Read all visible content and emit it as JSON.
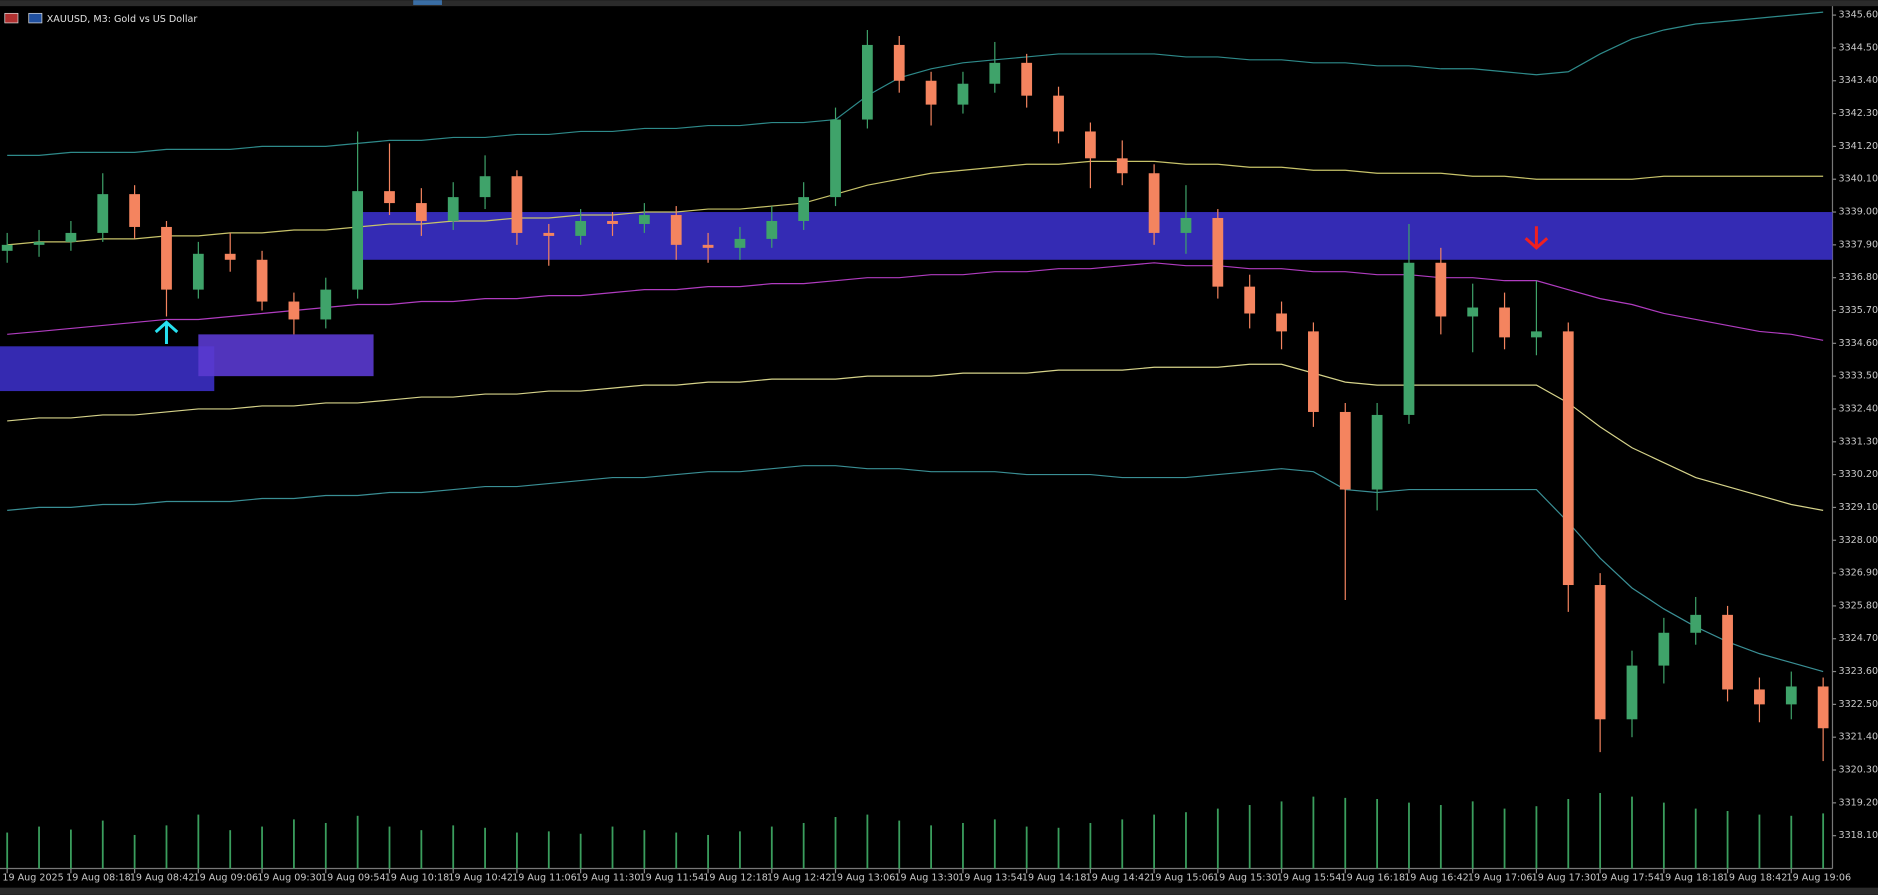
{
  "chart_data": {
    "type": "candlestick",
    "title": "XAUUSD, M3:  Gold vs US Dollar",
    "categories": [
      "19 Aug 2025",
      null,
      "19 Aug 08:18",
      null,
      "19 Aug 08:42",
      null,
      "19 Aug 09:06",
      null,
      "19 Aug 09:30",
      null,
      "19 Aug 09:54",
      null,
      "19 Aug 10:18",
      null,
      "19 Aug 10:42",
      null,
      "19 Aug 11:06",
      null,
      "19 Aug 11:30",
      null,
      "19 Aug 11:54",
      null,
      "19 Aug 12:18",
      null,
      "19 Aug 12:42",
      null,
      "19 Aug 13:06",
      null,
      "19 Aug 13:30",
      null,
      "19 Aug 13:54",
      null,
      "19 Aug 14:18",
      null,
      "19 Aug 14:42",
      null,
      "19 Aug 15:06",
      null,
      "19 Aug 15:30",
      null,
      "19 Aug 15:54",
      null,
      "19 Aug 16:18",
      null,
      "19 Aug 16:42",
      null,
      "19 Aug 17:06",
      null,
      "19 Aug 17:30",
      null,
      "19 Aug 17:54",
      null,
      "19 Aug 18:18",
      null,
      "19 Aug 18:42",
      null,
      "19 Aug 19:06",
      null
    ],
    "open": [
      3337.7,
      3337.9,
      3338.0,
      3338.3,
      3339.6,
      3338.5,
      3336.4,
      3337.6,
      3337.4,
      3336.0,
      3335.4,
      3336.4,
      3339.7,
      3339.3,
      3338.7,
      3339.5,
      3340.2,
      3338.3,
      3338.2,
      3338.7,
      3338.6,
      3338.9,
      3337.9,
      3337.8,
      3338.1,
      3338.7,
      3339.5,
      3342.1,
      3344.6,
      3343.4,
      3342.6,
      3343.3,
      3344.0,
      3342.9,
      3341.7,
      3340.8,
      3340.3,
      3338.3,
      3338.8,
      3336.5,
      3335.6,
      3335.0,
      3332.3,
      3329.7,
      3332.2,
      3337.3,
      3335.5,
      3335.8,
      3334.8,
      3335.0,
      3326.5,
      3322.0,
      3323.8,
      3324.9,
      3325.5,
      3323.0,
      3322.5,
      3323.1
    ],
    "high": [
      3338.3,
      3338.4,
      3338.7,
      3340.3,
      3339.9,
      3338.7,
      3338.0,
      3338.3,
      3337.7,
      3336.3,
      3336.8,
      3341.7,
      3341.3,
      3339.8,
      3340.0,
      3340.9,
      3340.4,
      3338.6,
      3339.1,
      3339.0,
      3339.3,
      3339.2,
      3338.3,
      3338.5,
      3339.2,
      3340.0,
      3342.5,
      3345.1,
      3344.9,
      3343.7,
      3343.7,
      3344.7,
      3344.3,
      3343.2,
      3342.0,
      3341.4,
      3340.6,
      3339.9,
      3339.1,
      3336.9,
      3336.0,
      3335.3,
      3332.6,
      3332.6,
      3338.6,
      3337.8,
      3336.6,
      3336.3,
      3336.7,
      3335.3,
      3326.9,
      3324.3,
      3325.4,
      3326.1,
      3325.8,
      3323.4,
      3323.6,
      3323.4
    ],
    "low": [
      3337.3,
      3337.5,
      3337.7,
      3338.0,
      3338.1,
      3335.5,
      3336.1,
      3337.0,
      3335.7,
      3334.9,
      3335.1,
      3336.1,
      3338.9,
      3338.2,
      3338.4,
      3339.1,
      3337.9,
      3337.2,
      3337.9,
      3338.2,
      3338.3,
      3337.4,
      3337.3,
      3337.4,
      3337.8,
      3338.4,
      3339.2,
      3341.8,
      3343.0,
      3341.9,
      3342.3,
      3343.0,
      3342.5,
      3341.3,
      3339.8,
      3339.9,
      3337.9,
      3337.6,
      3336.1,
      3335.1,
      3334.4,
      3331.8,
      3326.0,
      3329.0,
      3331.9,
      3334.9,
      3334.3,
      3334.4,
      3334.2,
      3325.6,
      3320.9,
      3321.4,
      3323.2,
      3324.5,
      3322.6,
      3321.9,
      3322.0,
      3320.6
    ],
    "close": [
      3337.9,
      3338.0,
      3338.3,
      3339.6,
      3338.5,
      3336.4,
      3337.6,
      3337.4,
      3336.0,
      3335.4,
      3336.4,
      3339.7,
      3339.3,
      3338.7,
      3339.5,
      3340.2,
      3338.3,
      3338.2,
      3338.7,
      3338.6,
      3338.9,
      3337.9,
      3337.8,
      3338.1,
      3338.7,
      3339.5,
      3342.1,
      3344.6,
      3343.4,
      3342.6,
      3343.3,
      3344.0,
      3342.9,
      3341.7,
      3340.8,
      3340.3,
      3338.3,
      3338.8,
      3336.5,
      3335.6,
      3335.0,
      3332.3,
      3329.7,
      3332.2,
      3337.3,
      3335.5,
      3335.8,
      3334.8,
      3335.0,
      3326.5,
      3322.0,
      3323.8,
      3324.9,
      3325.5,
      3323.0,
      3322.5,
      3323.1,
      3321.7
    ],
    "volume": [
      600,
      700,
      650,
      800,
      560,
      720,
      900,
      640,
      700,
      820,
      760,
      880,
      700,
      640,
      720,
      680,
      600,
      620,
      580,
      700,
      640,
      600,
      560,
      620,
      700,
      760,
      860,
      900,
      800,
      720,
      760,
      820,
      700,
      680,
      760,
      820,
      900,
      940,
      1000,
      1060,
      1120,
      1200,
      1180,
      1160,
      1100,
      1060,
      1120,
      1000,
      1040,
      1160,
      1260,
      1200,
      1100,
      1000,
      960,
      900,
      880,
      920
    ],
    "bull_color": "#3fa36a",
    "bear_color": "#f4845f",
    "volume_color": "#3a9e5d",
    "indicators": [
      {
        "color": "#2e8a8a",
        "values": [
          3340.9,
          3340.9,
          3341.0,
          3341.0,
          3341.0,
          3341.1,
          3341.1,
          3341.1,
          3341.2,
          3341.2,
          3341.2,
          3341.3,
          3341.4,
          3341.4,
          3341.5,
          3341.5,
          3341.6,
          3341.6,
          3341.7,
          3341.7,
          3341.8,
          3341.8,
          3341.9,
          3341.9,
          3342.0,
          3342.0,
          3342.1,
          3342.9,
          3343.5,
          3343.8,
          3344.0,
          3344.1,
          3344.2,
          3344.3,
          3344.3,
          3344.3,
          3344.3,
          3344.2,
          3344.2,
          3344.1,
          3344.1,
          3344.0,
          3344.0,
          3343.9,
          3343.9,
          3343.8,
          3343.8,
          3343.7,
          3343.6,
          3343.7,
          3344.3,
          3344.8,
          3345.1,
          3345.3,
          3345.4,
          3345.5,
          3345.6,
          3345.7
        ]
      },
      {
        "color": "#c8c36a",
        "values": [
          3337.9,
          3338.0,
          3338.0,
          3338.1,
          3338.1,
          3338.2,
          3338.2,
          3338.3,
          3338.3,
          3338.4,
          3338.4,
          3338.5,
          3338.6,
          3338.6,
          3338.7,
          3338.7,
          3338.8,
          3338.8,
          3338.9,
          3338.9,
          3339.0,
          3339.0,
          3339.1,
          3339.1,
          3339.2,
          3339.3,
          3339.6,
          3339.9,
          3340.1,
          3340.3,
          3340.4,
          3340.5,
          3340.6,
          3340.6,
          3340.7,
          3340.7,
          3340.7,
          3340.6,
          3340.6,
          3340.5,
          3340.5,
          3340.4,
          3340.4,
          3340.3,
          3340.3,
          3340.3,
          3340.2,
          3340.2,
          3340.1,
          3340.1,
          3340.1,
          3340.1,
          3340.2,
          3340.2,
          3340.2,
          3340.2,
          3340.2,
          3340.2
        ]
      },
      {
        "color": "#b03cc0",
        "values": [
          3334.9,
          3335.0,
          3335.1,
          3335.2,
          3335.3,
          3335.4,
          3335.4,
          3335.5,
          3335.6,
          3335.7,
          3335.8,
          3335.9,
          3335.9,
          3336.0,
          3336.0,
          3336.1,
          3336.1,
          3336.2,
          3336.2,
          3336.3,
          3336.4,
          3336.4,
          3336.5,
          3336.5,
          3336.6,
          3336.6,
          3336.7,
          3336.8,
          3336.8,
          3336.9,
          3336.9,
          3337.0,
          3337.0,
          3337.1,
          3337.1,
          3337.2,
          3337.3,
          3337.2,
          3337.2,
          3337.1,
          3337.1,
          3337.0,
          3337.0,
          3336.9,
          3336.9,
          3336.8,
          3336.8,
          3336.7,
          3336.7,
          3336.4,
          3336.1,
          3335.9,
          3335.6,
          3335.4,
          3335.2,
          3335.0,
          3334.9,
          3334.7
        ]
      },
      {
        "color": "#d6d38a",
        "values": [
          3332.0,
          3332.1,
          3332.1,
          3332.2,
          3332.2,
          3332.3,
          3332.4,
          3332.4,
          3332.5,
          3332.5,
          3332.6,
          3332.6,
          3332.7,
          3332.8,
          3332.8,
          3332.9,
          3332.9,
          3333.0,
          3333.0,
          3333.1,
          3333.2,
          3333.2,
          3333.3,
          3333.3,
          3333.4,
          3333.4,
          3333.4,
          3333.5,
          3333.5,
          3333.5,
          3333.6,
          3333.6,
          3333.6,
          3333.7,
          3333.7,
          3333.7,
          3333.8,
          3333.8,
          3333.8,
          3333.9,
          3333.9,
          3333.6,
          3333.3,
          3333.2,
          3333.2,
          3333.2,
          3333.2,
          3333.2,
          3333.2,
          3332.6,
          3331.8,
          3331.1,
          3330.6,
          3330.1,
          3329.8,
          3329.5,
          3329.2,
          3329.0
        ]
      },
      {
        "color": "#3a8f95",
        "values": [
          3329.0,
          3329.1,
          3329.1,
          3329.2,
          3329.2,
          3329.3,
          3329.3,
          3329.3,
          3329.4,
          3329.4,
          3329.5,
          3329.5,
          3329.6,
          3329.6,
          3329.7,
          3329.8,
          3329.8,
          3329.9,
          3330.0,
          3330.1,
          3330.1,
          3330.2,
          3330.3,
          3330.3,
          3330.4,
          3330.5,
          3330.5,
          3330.4,
          3330.4,
          3330.3,
          3330.3,
          3330.3,
          3330.2,
          3330.2,
          3330.2,
          3330.1,
          3330.1,
          3330.1,
          3330.2,
          3330.3,
          3330.4,
          3330.3,
          3329.7,
          3329.6,
          3329.7,
          3329.7,
          3329.7,
          3329.7,
          3329.7,
          3328.6,
          3327.4,
          3326.4,
          3325.7,
          3325.1,
          3324.6,
          3324.2,
          3323.9,
          3323.6
        ]
      }
    ],
    "zones": [
      {
        "from": 0,
        "to": 6,
        "top": 3334.5,
        "bottom": 3333.0,
        "color": "#3b2fc4"
      },
      {
        "from": 6,
        "to": 11,
        "top": 3334.9,
        "bottom": 3333.5,
        "color": "#5a3ad0"
      },
      {
        "from": 11,
        "to": 57,
        "top": 3339.0,
        "bottom": 3337.4,
        "color": "#3a30c8"
      }
    ],
    "signals": [
      {
        "index": 5,
        "value": 3335.3,
        "direction": "up",
        "color": "#27e0f0"
      },
      {
        "index": 48,
        "value": 3337.8,
        "direction": "down",
        "color": "#f02020"
      }
    ],
    "ylim": [
      3317.0,
      3345.9
    ],
    "yticks": [
      {
        "value": 3345.6,
        "label": "3345.60"
      },
      {
        "value": 3344.5,
        "label": "3344.50"
      },
      {
        "value": 3343.4,
        "label": "3343.40"
      },
      {
        "value": 3342.3,
        "label": "3342.30"
      },
      {
        "value": 3341.2,
        "label": "3341.20"
      },
      {
        "value": 3340.1,
        "label": "3340.10"
      },
      {
        "value": 3339.0,
        "label": "3339.00"
      },
      {
        "value": 3337.9,
        "label": "3337.90"
      },
      {
        "value": 3336.8,
        "label": "3336.80"
      },
      {
        "value": 3335.7,
        "label": "3335.70"
      },
      {
        "value": 3334.6,
        "label": "3334.60"
      },
      {
        "value": 3333.5,
        "label": "3333.50"
      },
      {
        "value": 3332.4,
        "label": "3332.40"
      },
      {
        "value": 3331.3,
        "label": "3331.30"
      },
      {
        "value": 3330.2,
        "label": "3330.20"
      },
      {
        "value": 3329.1,
        "label": "3329.10"
      },
      {
        "value": 3328.0,
        "label": "3328.00"
      },
      {
        "value": 3326.9,
        "label": "3326.90"
      },
      {
        "value": 3325.8,
        "label": "3325.80"
      },
      {
        "value": 3324.7,
        "label": "3324.70"
      },
      {
        "value": 3323.6,
        "label": "3323.60"
      },
      {
        "value": 3322.5,
        "label": "3322.50"
      },
      {
        "value": 3321.4,
        "label": "3321.40"
      },
      {
        "value": 3320.3,
        "label": "3320.30"
      },
      {
        "value": 3319.2,
        "label": "3319.20"
      },
      {
        "value": 3318.1,
        "label": "3318.10"
      }
    ]
  }
}
